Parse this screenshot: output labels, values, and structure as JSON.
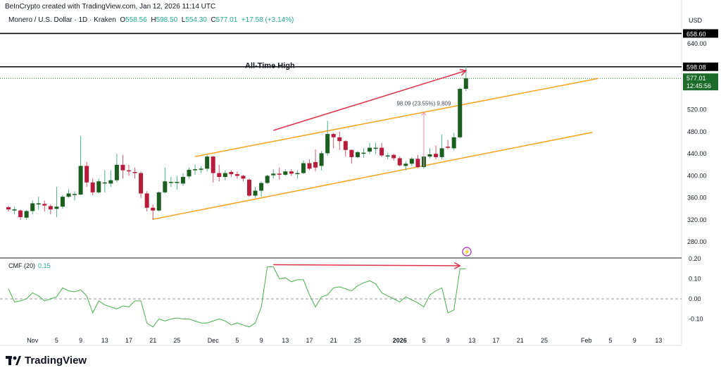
{
  "header": {
    "credit": "BeInCrypto created with TradingView.com, Jan 12, 2026 11:14 UTC",
    "symbol": "Monero / U.S. Dollar · 1D · Kraken",
    "o_label": "O",
    "o": "558.56",
    "h_label": "H",
    "h": "598.50",
    "l_label": "L",
    "l": "554.30",
    "c_label": "C",
    "c": "577.01",
    "change": "+17.58 (+3.14%)"
  },
  "currency": "USD",
  "indicator": {
    "name": "CMF (20)",
    "value": "0.15"
  },
  "brand": "TradingView",
  "colors": {
    "up": "#1b5e20",
    "down": "#b71c3c",
    "channel": "#f7a21b",
    "arrow": "#e0314b",
    "cmf": "#4caf50",
    "last_price": "#1b6b2a"
  },
  "chart_data": {
    "type": "candlestick",
    "interval": "1D",
    "first_date": "2025-10-28",
    "ohlc": [
      [
        343,
        346,
        335,
        339
      ],
      [
        338,
        344,
        330,
        339
      ],
      [
        337,
        339,
        320,
        325
      ],
      [
        324,
        338,
        320,
        336
      ],
      [
        336,
        355,
        330,
        350
      ],
      [
        350,
        362,
        338,
        350
      ],
      [
        349,
        355,
        335,
        346
      ],
      [
        345,
        348,
        330,
        339
      ],
      [
        340,
        380,
        325,
        344
      ],
      [
        344,
        365,
        340,
        362
      ],
      [
        362,
        375,
        360,
        368
      ],
      [
        367,
        372,
        355,
        367
      ],
      [
        366,
        472,
        365,
        418
      ],
      [
        418,
        425,
        380,
        388
      ],
      [
        388,
        395,
        365,
        370
      ],
      [
        370,
        395,
        368,
        390
      ],
      [
        388,
        410,
        370,
        388
      ],
      [
        386,
        410,
        380,
        392
      ],
      [
        392,
        440,
        388,
        420
      ],
      [
        420,
        438,
        395,
        410
      ],
      [
        410,
        420,
        400,
        408
      ],
      [
        407,
        415,
        395,
        405
      ],
      [
        405,
        408,
        360,
        368
      ],
      [
        368,
        372,
        335,
        342
      ],
      [
        342,
        348,
        320,
        337
      ],
      [
        337,
        372,
        335,
        370
      ],
      [
        370,
        415,
        368,
        390
      ],
      [
        389,
        398,
        380,
        389
      ],
      [
        389,
        400,
        375,
        389
      ],
      [
        386,
        405,
        382,
        398
      ],
      [
        399,
        415,
        395,
        411
      ],
      [
        412,
        420,
        402,
        412
      ],
      [
        412,
        418,
        405,
        413
      ],
      [
        413,
        438,
        408,
        435
      ],
      [
        435,
        436,
        388,
        405
      ],
      [
        405,
        420,
        390,
        398
      ],
      [
        398,
        410,
        392,
        405
      ],
      [
        407,
        410,
        398,
        403
      ],
      [
        403,
        408,
        395,
        400
      ],
      [
        400,
        402,
        390,
        395
      ],
      [
        393,
        395,
        362,
        364
      ],
      [
        364,
        380,
        360,
        373
      ],
      [
        373,
        390,
        362,
        387
      ],
      [
        387,
        402,
        385,
        400
      ],
      [
        401,
        412,
        395,
        404
      ],
      [
        404,
        415,
        393,
        402
      ],
      [
        402,
        412,
        400,
        408
      ],
      [
        408,
        412,
        400,
        404
      ],
      [
        405,
        410,
        395,
        405
      ],
      [
        405,
        428,
        403,
        423
      ],
      [
        423,
        430,
        410,
        413
      ],
      [
        425,
        448,
        408,
        415
      ],
      [
        418,
        445,
        410,
        441
      ],
      [
        441,
        500,
        436,
        476
      ],
      [
        476,
        478,
        450,
        470
      ],
      [
        470,
        480,
        447,
        463
      ],
      [
        463,
        465,
        435,
        447
      ],
      [
        447,
        448,
        422,
        434
      ],
      [
        434,
        445,
        432,
        443
      ],
      [
        442,
        450,
        433,
        442
      ],
      [
        444,
        460,
        440,
        451
      ],
      [
        451,
        460,
        440,
        451
      ],
      [
        451,
        460,
        434,
        437
      ],
      [
        437,
        442,
        430,
        437
      ],
      [
        438,
        440,
        428,
        432
      ],
      [
        432,
        435,
        417,
        419
      ],
      [
        418,
        426,
        410,
        422
      ],
      [
        422,
        434,
        418,
        431
      ],
      [
        431,
        438,
        414,
        416
      ],
      [
        416,
        437,
        413,
        435
      ],
      [
        435,
        450,
        432,
        439
      ],
      [
        440,
        455,
        430,
        434
      ],
      [
        434,
        475,
        430,
        450
      ],
      [
        453,
        465,
        449,
        451
      ],
      [
        450,
        478,
        446,
        470
      ],
      [
        470,
        560,
        468,
        558
      ],
      [
        558,
        598.5,
        554,
        577
      ]
    ],
    "cmf": [
      0.05,
      -0.015,
      -0.01,
      0.0,
      0.03,
      0.015,
      -0.01,
      0.0,
      0.01,
      0.055,
      0.04,
      0.035,
      0.045,
      0.015,
      -0.07,
      -0.01,
      -0.03,
      -0.04,
      -0.05,
      -0.035,
      -0.04,
      -0.01,
      -0.01,
      -0.12,
      -0.14,
      -0.1,
      -0.11,
      -0.1,
      -0.095,
      -0.1,
      -0.1,
      -0.11,
      -0.12,
      -0.12,
      -0.11,
      -0.1,
      -0.11,
      -0.13,
      -0.12,
      -0.13,
      -0.14,
      -0.12,
      -0.04,
      0.16,
      0.16,
      0.1,
      0.105,
      0.085,
      0.095,
      0.095,
      0.02,
      -0.04,
      0.01,
      0.02,
      0.055,
      0.06,
      0.05,
      0.04,
      0.065,
      0.08,
      0.09,
      0.075,
      0.03,
      0.015,
      0.0,
      -0.015,
      0.01,
      -0.005,
      -0.02,
      -0.04,
      0.02,
      0.04,
      0.055,
      -0.07,
      -0.055,
      0.15,
      0.15
    ],
    "price_ticks": [
      "640.00",
      "520.00",
      "480.00",
      "440.00",
      "400.00",
      "360.00",
      "320.00",
      "280.00"
    ],
    "cmf_ticks": [
      "0.20",
      "0.10",
      "0.00",
      "-0.10"
    ],
    "x_ticks": [
      {
        "date": "2025-11-01",
        "label": "Nov"
      },
      {
        "date": "2025-11-05",
        "label": "5"
      },
      {
        "date": "2025-11-09",
        "label": "9"
      },
      {
        "date": "2025-11-13",
        "label": "13"
      },
      {
        "date": "2025-11-17",
        "label": "17"
      },
      {
        "date": "2025-11-21",
        "label": "21"
      },
      {
        "date": "2025-11-25",
        "label": "25"
      },
      {
        "date": "2025-12-01",
        "label": "Dec"
      },
      {
        "date": "2025-12-05",
        "label": "5"
      },
      {
        "date": "2025-12-09",
        "label": "9"
      },
      {
        "date": "2025-12-13",
        "label": "13"
      },
      {
        "date": "2025-12-17",
        "label": "17"
      },
      {
        "date": "2025-12-21",
        "label": "21"
      },
      {
        "date": "2025-12-25",
        "label": "25"
      },
      {
        "date": "2026-01-01",
        "label": "2026",
        "bold": true
      },
      {
        "date": "2026-01-05",
        "label": "5"
      },
      {
        "date": "2026-01-09",
        "label": "9"
      },
      {
        "date": "2026-01-13",
        "label": "13"
      },
      {
        "date": "2026-01-17",
        "label": "17"
      },
      {
        "date": "2026-01-21",
        "label": "21"
      },
      {
        "date": "2026-01-25",
        "label": "25"
      },
      {
        "date": "2026-02-01",
        "label": "Feb"
      },
      {
        "date": "2026-02-05",
        "label": "5"
      },
      {
        "date": "2026-02-09",
        "label": "9"
      },
      {
        "date": "2026-02-13",
        "label": "13"
      }
    ],
    "levels": [
      {
        "price": 658.6,
        "label": "658.60"
      },
      {
        "price": 598.08,
        "label": "598.08",
        "annotation": "All-Time High"
      }
    ],
    "last_price": {
      "price": 577.01,
      "label": "577.01",
      "countdown": "12:45:56"
    },
    "channel": [
      {
        "from": {
          "date": "2025-11-28",
          "price": 435
        },
        "to": {
          "date": "2026-02-03",
          "price": 577
        }
      },
      {
        "from": {
          "date": "2025-11-21",
          "price": 321
        },
        "to": {
          "date": "2026-02-02",
          "price": 479
        }
      }
    ],
    "price_arrow": {
      "from": {
        "date": "2025-12-11",
        "price": 482.5
      },
      "to": {
        "date": "2026-01-12",
        "price": 591
      }
    },
    "cmf_arrow": {
      "from": {
        "date": "2025-12-11",
        "value": 0.17
      },
      "to": {
        "date": "2026-01-11",
        "value": 0.165
      }
    },
    "measure": {
      "date": "2026-01-05",
      "from": 417,
      "to": 515,
      "label": "98.09 (23.55%) 9,809"
    }
  }
}
